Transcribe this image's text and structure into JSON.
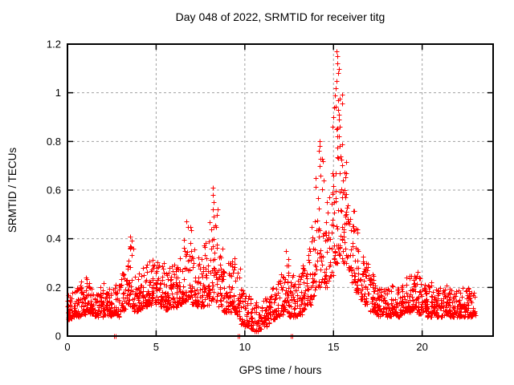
{
  "chart_data": {
    "type": "scatter",
    "title": "Day 048 of 2022, SRMTID for receiver titg",
    "xlabel": "GPS time / hours",
    "ylabel": "SRMTID / TECUs",
    "xlim": [
      0,
      24
    ],
    "ylim": [
      0,
      1.2
    ],
    "xticks": [
      "0",
      "5",
      "10",
      "15",
      "20"
    ],
    "yticks": [
      "0",
      "0.2",
      "0.4",
      "0.6",
      "0.8",
      "1",
      "1.2"
    ],
    "grid": true,
    "grid_style": "dashed",
    "grid_color": "#a0a0a0",
    "marker": "plus",
    "marker_color": "#ff0000",
    "border_color": "#000000",
    "legend": "none",
    "seed": 48,
    "bin_width": 0.25,
    "bins": [
      [
        0.0,
        0.07,
        0.19,
        26
      ],
      [
        0.25,
        0.08,
        0.2,
        26
      ],
      [
        0.5,
        0.08,
        0.22,
        26
      ],
      [
        0.75,
        0.09,
        0.23,
        26
      ],
      [
        1.0,
        0.1,
        0.24,
        26
      ],
      [
        1.25,
        0.09,
        0.22,
        26
      ],
      [
        1.5,
        0.08,
        0.2,
        24
      ],
      [
        1.75,
        0.08,
        0.21,
        24
      ],
      [
        2.0,
        0.09,
        0.22,
        24
      ],
      [
        2.25,
        0.08,
        0.2,
        24
      ],
      [
        2.5,
        0.09,
        0.21,
        24
      ],
      [
        2.75,
        0.08,
        0.23,
        24
      ],
      [
        3.0,
        0.1,
        0.26,
        24
      ],
      [
        3.25,
        0.11,
        0.32,
        24
      ],
      [
        3.5,
        0.12,
        0.4,
        22
      ],
      [
        3.75,
        0.1,
        0.28,
        24
      ],
      [
        4.0,
        0.11,
        0.28,
        26
      ],
      [
        4.25,
        0.12,
        0.3,
        26
      ],
      [
        4.5,
        0.13,
        0.32,
        26
      ],
      [
        4.75,
        0.14,
        0.33,
        26
      ],
      [
        5.0,
        0.13,
        0.31,
        26
      ],
      [
        5.25,
        0.12,
        0.31,
        26
      ],
      [
        5.5,
        0.11,
        0.28,
        26
      ],
      [
        5.75,
        0.12,
        0.3,
        26
      ],
      [
        6.0,
        0.12,
        0.33,
        26
      ],
      [
        6.25,
        0.13,
        0.38,
        26
      ],
      [
        6.5,
        0.14,
        0.44,
        24
      ],
      [
        6.75,
        0.15,
        0.46,
        24
      ],
      [
        7.0,
        0.13,
        0.4,
        24
      ],
      [
        7.25,
        0.12,
        0.35,
        24
      ],
      [
        7.5,
        0.12,
        0.38,
        24
      ],
      [
        7.75,
        0.13,
        0.43,
        24
      ],
      [
        8.0,
        0.14,
        0.5,
        24
      ],
      [
        8.25,
        0.14,
        0.57,
        22
      ],
      [
        8.5,
        0.12,
        0.38,
        24
      ],
      [
        8.75,
        0.1,
        0.33,
        24
      ],
      [
        9.0,
        0.1,
        0.3,
        24
      ],
      [
        9.25,
        0.1,
        0.32,
        24
      ],
      [
        9.5,
        0.07,
        0.28,
        22
      ],
      [
        9.75,
        0.05,
        0.22,
        22
      ],
      [
        10.0,
        0.04,
        0.18,
        22
      ],
      [
        10.25,
        0.03,
        0.16,
        22
      ],
      [
        10.5,
        0.02,
        0.15,
        22
      ],
      [
        10.75,
        0.03,
        0.16,
        22
      ],
      [
        11.0,
        0.04,
        0.17,
        22
      ],
      [
        11.25,
        0.05,
        0.18,
        22
      ],
      [
        11.5,
        0.07,
        0.22,
        24
      ],
      [
        11.75,
        0.08,
        0.25,
        24
      ],
      [
        12.0,
        0.09,
        0.28,
        24
      ],
      [
        12.25,
        0.1,
        0.33,
        24
      ],
      [
        12.5,
        0.08,
        0.26,
        24
      ],
      [
        12.75,
        0.08,
        0.24,
        24
      ],
      [
        13.0,
        0.09,
        0.26,
        24
      ],
      [
        13.25,
        0.11,
        0.3,
        24
      ],
      [
        13.5,
        0.13,
        0.38,
        24
      ],
      [
        13.75,
        0.15,
        0.48,
        24
      ],
      [
        14.0,
        0.2,
        0.66,
        24
      ],
      [
        14.25,
        0.22,
        0.75,
        24
      ],
      [
        14.5,
        0.2,
        0.58,
        22
      ],
      [
        14.75,
        0.24,
        0.72,
        22
      ],
      [
        15.0,
        0.3,
        0.98,
        26
      ],
      [
        15.25,
        0.32,
        1.1,
        28
      ],
      [
        15.5,
        0.3,
        0.72,
        26
      ],
      [
        15.75,
        0.27,
        0.6,
        24
      ],
      [
        16.0,
        0.22,
        0.52,
        24
      ],
      [
        16.25,
        0.18,
        0.45,
        24
      ],
      [
        16.5,
        0.15,
        0.38,
        24
      ],
      [
        16.75,
        0.13,
        0.32,
        24
      ],
      [
        17.0,
        0.1,
        0.26,
        24
      ],
      [
        17.25,
        0.09,
        0.22,
        24
      ],
      [
        17.5,
        0.08,
        0.2,
        24
      ],
      [
        17.75,
        0.08,
        0.2,
        24
      ],
      [
        18.0,
        0.08,
        0.21,
        24
      ],
      [
        18.25,
        0.09,
        0.22,
        24
      ],
      [
        18.5,
        0.08,
        0.2,
        24
      ],
      [
        18.75,
        0.09,
        0.22,
        24
      ],
      [
        19.0,
        0.1,
        0.24,
        24
      ],
      [
        19.25,
        0.1,
        0.26,
        24
      ],
      [
        19.5,
        0.1,
        0.27,
        24
      ],
      [
        19.75,
        0.09,
        0.24,
        24
      ],
      [
        20.0,
        0.09,
        0.23,
        24
      ],
      [
        20.25,
        0.08,
        0.21,
        24
      ],
      [
        20.5,
        0.09,
        0.22,
        24
      ],
      [
        20.75,
        0.08,
        0.2,
        24
      ],
      [
        21.0,
        0.08,
        0.2,
        24
      ],
      [
        21.25,
        0.09,
        0.21,
        24
      ],
      [
        21.5,
        0.08,
        0.2,
        24
      ],
      [
        21.75,
        0.08,
        0.2,
        24
      ],
      [
        22.0,
        0.08,
        0.19,
        24
      ],
      [
        22.25,
        0.08,
        0.2,
        24
      ],
      [
        22.5,
        0.08,
        0.2,
        24
      ],
      [
        22.75,
        0.08,
        0.19,
        22
      ]
    ],
    "notable_points": [
      [
        2.63,
        0.0
      ],
      [
        2.7,
        0.0
      ],
      [
        9.6,
        0.0
      ],
      [
        9.67,
        0.0
      ],
      [
        12.6,
        0.0
      ],
      [
        12.67,
        0.0
      ],
      [
        1.05,
        0.24
      ],
      [
        3.52,
        0.41
      ],
      [
        3.54,
        0.37
      ],
      [
        6.7,
        0.47
      ],
      [
        6.78,
        0.45
      ],
      [
        8.18,
        0.61
      ],
      [
        8.2,
        0.58
      ],
      [
        8.22,
        0.55
      ],
      [
        8.19,
        0.52
      ],
      [
        8.23,
        0.49
      ],
      [
        9.4,
        0.32
      ],
      [
        12.3,
        0.35
      ],
      [
        14.16,
        0.76
      ],
      [
        14.2,
        0.8
      ],
      [
        14.24,
        0.78
      ],
      [
        14.28,
        0.73
      ],
      [
        14.22,
        0.7
      ],
      [
        14.95,
        0.86
      ],
      [
        15.0,
        0.9
      ],
      [
        15.05,
        0.94
      ],
      [
        15.1,
        0.99
      ],
      [
        15.12,
        1.02
      ],
      [
        15.16,
        1.05
      ],
      [
        15.18,
        1.17
      ],
      [
        15.2,
        1.15
      ],
      [
        15.22,
        1.12
      ],
      [
        15.24,
        1.08
      ],
      [
        15.26,
        0.97
      ],
      [
        15.28,
        0.93
      ],
      [
        15.3,
        0.89
      ],
      [
        15.15,
        0.85
      ],
      [
        15.32,
        0.82
      ],
      [
        15.35,
        0.78
      ],
      [
        15.4,
        0.74
      ],
      [
        15.55,
        0.64
      ],
      [
        15.6,
        0.6
      ],
      [
        15.65,
        0.57
      ]
    ]
  }
}
